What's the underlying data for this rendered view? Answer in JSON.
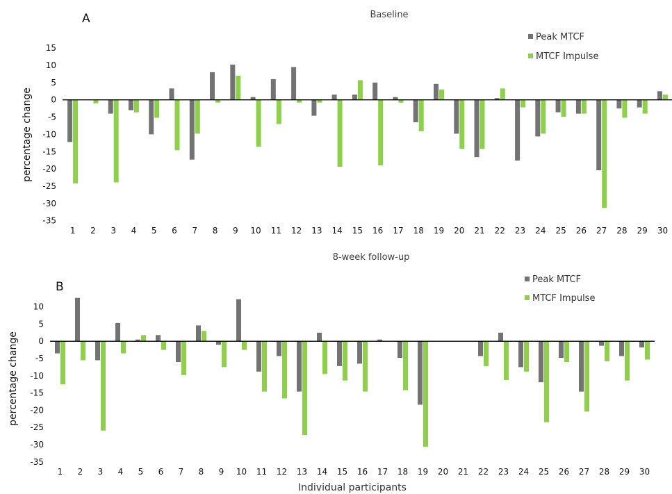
{
  "colors": {
    "peak": "#737373",
    "impulse": "#8ed04b"
  },
  "x_axis_label": "Individual participants",
  "legend": {
    "peak": "Peak MTCF",
    "impulse": "MTCF Impulse"
  },
  "chart_data": [
    {
      "type": "bar",
      "panel": "A",
      "title": "Baseline",
      "ylabel": "percentage change",
      "xlabel": "",
      "ylim": [
        -35,
        15
      ],
      "yticks": [
        15,
        10,
        5,
        0,
        -5,
        -10,
        -15,
        -20,
        -25,
        -30,
        -35
      ],
      "categories": [
        "1",
        "2",
        "3",
        "4",
        "5",
        "6",
        "7",
        "8",
        "9",
        "10",
        "11",
        "12",
        "13",
        "14",
        "15",
        "16",
        "17",
        "18",
        "19",
        "20",
        "21",
        "22",
        "23",
        "24",
        "25",
        "26",
        "27",
        "28",
        "29",
        "30"
      ],
      "legend_position": "top-right",
      "grid": false,
      "series": [
        {
          "name": "Peak MTCF",
          "color": "#737373",
          "values": [
            -12.2,
            0,
            -4,
            -3,
            -10,
            3.3,
            -17.3,
            8,
            10.2,
            0.8,
            6,
            9.5,
            -4.6,
            1.5,
            1.5,
            5,
            0.8,
            -6.5,
            4.6,
            -9.8,
            -16.6,
            0.5,
            -17.6,
            -10.6,
            -3.6,
            -4,
            -20.4,
            -2.5,
            -2.2,
            2.5
          ]
        },
        {
          "name": "MTCF Impulse",
          "color": "#8ed04b",
          "values": [
            -24.2,
            -1,
            -23.9,
            -3.6,
            -5.2,
            -14.6,
            -9.8,
            -0.8,
            7,
            -13.6,
            -7,
            -0.8,
            -0.8,
            -19.4,
            5.7,
            -19,
            -0.8,
            -9.1,
            3,
            -14.2,
            -14.2,
            3.3,
            -2.2,
            -9.8,
            -4.9,
            -4,
            -31.3,
            -5.2,
            -4,
            1.5
          ]
        }
      ]
    },
    {
      "type": "bar",
      "panel": "B",
      "title": "8-week follow-up",
      "ylabel": "percentage change",
      "xlabel": "Individual participants",
      "ylim": [
        -35,
        15
      ],
      "yticks": [
        10,
        5,
        0,
        -5,
        -10,
        -15,
        -20,
        -25,
        -30,
        -35
      ],
      "categories": [
        "1",
        "2",
        "3",
        "4",
        "5",
        "6",
        "7",
        "8",
        "9",
        "10",
        "11",
        "12",
        "13",
        "14",
        "15",
        "16",
        "17",
        "18",
        "19",
        "20",
        "21",
        "22",
        "23",
        "24",
        "25",
        "26",
        "27",
        "28",
        "29",
        "30"
      ],
      "legend_position": "top-right",
      "grid": false,
      "series": [
        {
          "name": "Peak MTCF",
          "color": "#737373",
          "values": [
            -3.5,
            12.6,
            -5.5,
            5.3,
            0.5,
            1.8,
            -6,
            4.6,
            -1,
            12.2,
            -8.8,
            -4.3,
            -14.6,
            2.5,
            -7.2,
            -6.5,
            0.5,
            -4.8,
            -18.4,
            0,
            0,
            -4.3,
            2.5,
            -7.5,
            -11.9,
            -4.8,
            -14.6,
            -1.3,
            -4.3,
            -1.8
          ]
        },
        {
          "name": "MTCF Impulse",
          "color": "#8ed04b",
          "values": [
            -12.5,
            -5.5,
            -25.9,
            -3.5,
            1.8,
            -2.5,
            -9.8,
            3,
            -7.5,
            -2.5,
            -14.6,
            -16.6,
            -27.2,
            -9.5,
            -11.4,
            -14.6,
            0,
            -14.2,
            -30.6,
            0,
            0,
            -7.2,
            -11.2,
            -8.8,
            -23.5,
            -6,
            -20.4,
            -5.8,
            -11.4,
            -5.3
          ]
        }
      ]
    }
  ]
}
